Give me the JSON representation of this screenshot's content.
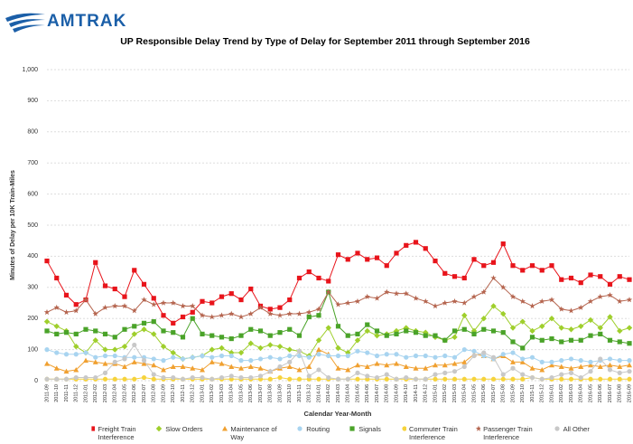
{
  "logo": "AMTRAK",
  "chart_data": {
    "type": "line",
    "title": "UP Responsible Delay Trend by Type of Delay for September 2011 through September 2016",
    "y_label": "Minutes of Delay per 10K Train-Miles",
    "x_label": "Calendar Year-Month",
    "categories": [
      "2011-09",
      "2011-10",
      "2011-11",
      "2011-12",
      "2012-01",
      "2012-02",
      "2012-03",
      "2012-04",
      "2012-05",
      "2012-06",
      "2012-07",
      "2012-08",
      "2012-09",
      "2012-10",
      "2012-11",
      "2012-12",
      "2013-01",
      "2013-02",
      "2013-03",
      "2013-04",
      "2013-05",
      "2013-06",
      "2013-07",
      "2013-08",
      "2013-09",
      "2013-10",
      "2013-11",
      "2013-12",
      "2014-01",
      "2014-02",
      "2014-03",
      "2014-04",
      "2014-05",
      "2014-06",
      "2014-07",
      "2014-08",
      "2014-09",
      "2014-10",
      "2014-11",
      "2014-12",
      "2015-01",
      "2015-02",
      "2015-03",
      "2015-04",
      "2015-05",
      "2015-06",
      "2015-07",
      "2015-08",
      "2015-09",
      "2015-10",
      "2015-11",
      "2015-12",
      "2016-01",
      "2016-02",
      "2016-03",
      "2016-04",
      "2016-05",
      "2016-06",
      "2016-07",
      "2016-08",
      "2016-09"
    ],
    "ylim": [
      0,
      1000
    ],
    "yticks": [
      0,
      100,
      200,
      300,
      400,
      500,
      600,
      700,
      800,
      {
        "value": 900,
        "label": "900"
      },
      {
        "value": 1000,
        "label": "1,000"
      }
    ],
    "grid": true,
    "series": [
      {
        "name": "Freight Train Interference",
        "color": "#e8141b",
        "marker": "square",
        "values": [
          385,
          330,
          275,
          245,
          260,
          380,
          305,
          295,
          270,
          355,
          310,
          265,
          210,
          185,
          205,
          220,
          255,
          250,
          270,
          280,
          260,
          295,
          240,
          230,
          235,
          260,
          330,
          350,
          330,
          320,
          405,
          390,
          410,
          390,
          395,
          370,
          410,
          435,
          445,
          425,
          385,
          345,
          335,
          330,
          390,
          370,
          380,
          440,
          370,
          355,
          370,
          355,
          370,
          325,
          330,
          315,
          340,
          335,
          310,
          335,
          325
        ]
      },
      {
        "name": "Slow Orders",
        "color": "#9fcf2c",
        "marker": "diamond",
        "values": [
          190,
          175,
          160,
          110,
          90,
          130,
          100,
          100,
          110,
          150,
          165,
          150,
          110,
          90,
          70,
          75,
          80,
          100,
          105,
          90,
          90,
          120,
          105,
          115,
          110,
          100,
          95,
          80,
          130,
          170,
          105,
          90,
          130,
          160,
          145,
          150,
          160,
          170,
          160,
          155,
          140,
          130,
          140,
          210,
          160,
          200,
          240,
          215,
          170,
          190,
          160,
          175,
          200,
          170,
          165,
          175,
          195,
          170,
          205,
          160,
          170
        ]
      },
      {
        "name": "Maintenance of Way",
        "color": "#f0a030",
        "marker": "triangle",
        "values": [
          55,
          40,
          30,
          35,
          65,
          60,
          55,
          55,
          45,
          60,
          55,
          50,
          35,
          45,
          45,
          40,
          35,
          60,
          55,
          45,
          40,
          45,
          40,
          30,
          40,
          45,
          35,
          45,
          100,
          85,
          40,
          35,
          50,
          45,
          55,
          50,
          55,
          45,
          40,
          40,
          50,
          50,
          55,
          60,
          85,
          80,
          70,
          80,
          60,
          60,
          40,
          35,
          50,
          45,
          40,
          45,
          50,
          45,
          50,
          45,
          50
        ]
      },
      {
        "name": "Routing",
        "color": "#a8d4f0",
        "marker": "circle",
        "values": [
          100,
          90,
          85,
          85,
          90,
          75,
          80,
          80,
          75,
          75,
          75,
          70,
          65,
          75,
          70,
          75,
          80,
          75,
          80,
          80,
          65,
          65,
          70,
          75,
          70,
          80,
          80,
          75,
          85,
          80,
          80,
          80,
          95,
          90,
          80,
          85,
          85,
          75,
          80,
          80,
          75,
          80,
          75,
          100,
          95,
          80,
          70,
          85,
          90,
          70,
          75,
          60,
          60,
          65,
          70,
          65,
          60,
          65,
          70,
          65,
          65
        ]
      },
      {
        "name": "Signals",
        "color": "#4aa329",
        "marker": "square",
        "values": [
          160,
          150,
          155,
          150,
          165,
          160,
          150,
          140,
          165,
          175,
          185,
          190,
          160,
          155,
          140,
          200,
          150,
          145,
          140,
          135,
          145,
          165,
          160,
          145,
          155,
          165,
          145,
          205,
          210,
          285,
          175,
          145,
          150,
          180,
          160,
          145,
          150,
          160,
          155,
          145,
          145,
          130,
          160,
          165,
          150,
          165,
          160,
          155,
          125,
          105,
          140,
          130,
          135,
          125,
          130,
          130,
          145,
          150,
          130,
          125,
          120
        ]
      },
      {
        "name": "Commuter Train Interference",
        "color": "#f6d33c",
        "marker": "circle",
        "values": [
          5,
          5,
          5,
          5,
          5,
          5,
          5,
          5,
          5,
          5,
          10,
          5,
          5,
          5,
          5,
          5,
          5,
          5,
          5,
          5,
          5,
          5,
          5,
          5,
          10,
          5,
          5,
          5,
          5,
          5,
          5,
          5,
          5,
          5,
          5,
          5,
          5,
          5,
          5,
          5,
          5,
          5,
          5,
          5,
          5,
          5,
          5,
          5,
          5,
          5,
          10,
          5,
          5,
          5,
          5,
          5,
          5,
          5,
          5,
          5,
          5
        ]
      },
      {
        "name": "Passenger Train Interference",
        "color": "#b5654f",
        "marker": "star",
        "values": [
          220,
          235,
          220,
          225,
          260,
          215,
          235,
          240,
          240,
          225,
          260,
          245,
          250,
          250,
          240,
          240,
          210,
          205,
          210,
          215,
          205,
          215,
          235,
          215,
          210,
          215,
          215,
          220,
          230,
          285,
          245,
          250,
          255,
          270,
          265,
          285,
          280,
          280,
          265,
          255,
          240,
          250,
          255,
          250,
          270,
          285,
          330,
          300,
          270,
          255,
          240,
          255,
          260,
          230,
          225,
          235,
          255,
          270,
          275,
          255,
          260
        ]
      },
      {
        "name": "All Other",
        "color": "#c8c8c8",
        "marker": "circle",
        "values": [
          5,
          5,
          5,
          10,
          10,
          10,
          25,
          60,
          70,
          115,
          65,
          20,
          10,
          10,
          5,
          10,
          10,
          5,
          10,
          15,
          10,
          10,
          15,
          30,
          45,
          60,
          95,
          15,
          35,
          10,
          5,
          5,
          25,
          15,
          10,
          20,
          5,
          10,
          5,
          5,
          20,
          25,
          30,
          45,
          80,
          90,
          75,
          20,
          40,
          20,
          10,
          5,
          10,
          20,
          25,
          10,
          30,
          70,
          35,
          25,
          30
        ]
      }
    ]
  }
}
